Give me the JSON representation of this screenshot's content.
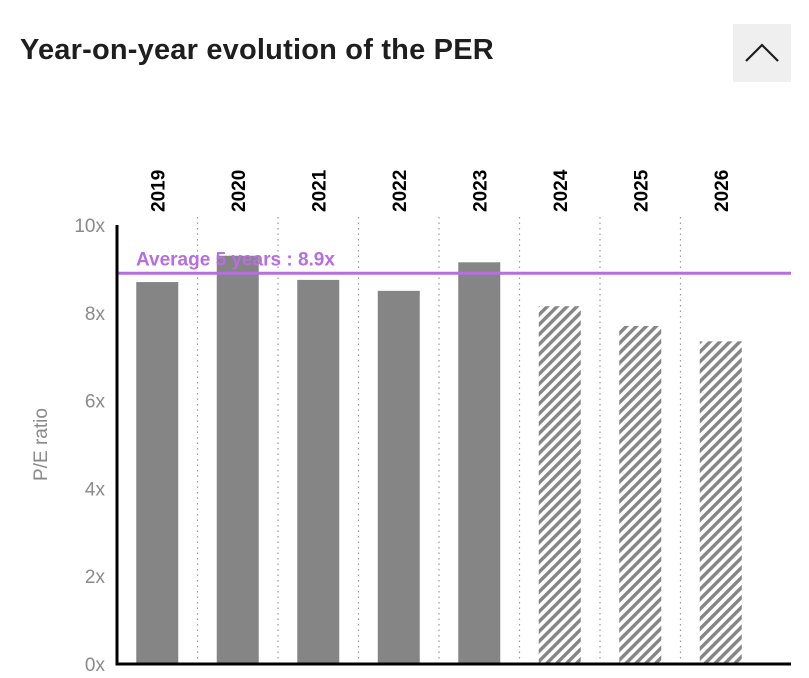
{
  "header": {
    "title": "Year-on-year evolution of the PER"
  },
  "icons": {
    "collapse": "chevron-up-icon"
  },
  "colors": {
    "bar": "#858585",
    "average_line": "#b66ee0",
    "axis": "#000000",
    "tick_text": "#8a8a8a",
    "grid": "#9a9a9a"
  },
  "chart_data": {
    "type": "bar",
    "title": "Year-on-year evolution of the PER",
    "xlabel": "",
    "ylabel": "P/E ratio",
    "ylim": [
      0,
      10
    ],
    "yticks": [
      0,
      2,
      4,
      6,
      8,
      10
    ],
    "ytick_labels": [
      "0x",
      "2x",
      "4x",
      "6x",
      "8x",
      "10x"
    ],
    "categories": [
      "2019",
      "2020",
      "2021",
      "2022",
      "2023",
      "2024",
      "2025",
      "2026"
    ],
    "values": [
      8.7,
      9.3,
      8.75,
      8.5,
      9.15,
      8.15,
      7.7,
      7.35
    ],
    "estimated": [
      false,
      false,
      false,
      false,
      false,
      true,
      true,
      true
    ],
    "average": {
      "label": "Average 5 years : 8.9x",
      "value": 8.9
    }
  }
}
